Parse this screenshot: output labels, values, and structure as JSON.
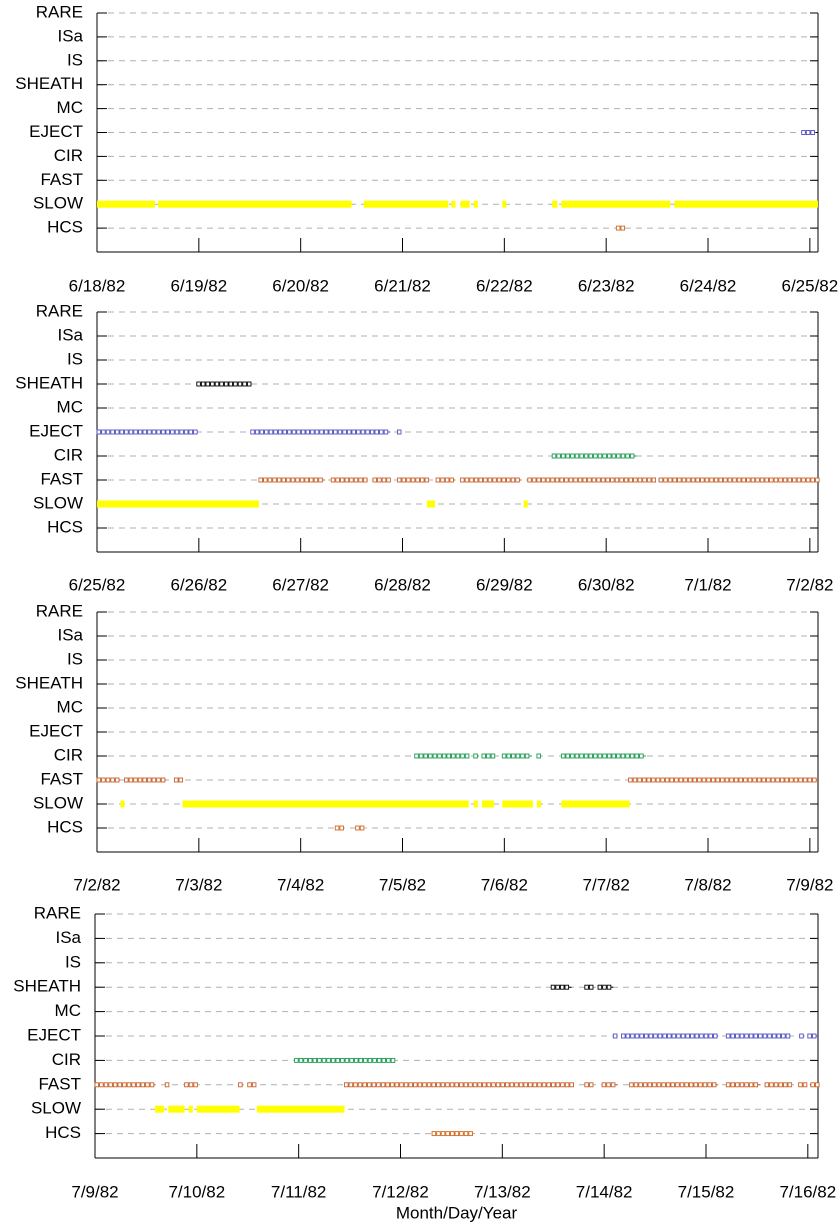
{
  "chart_data": [
    {
      "type": "timeline",
      "categories": [
        "HCS",
        "SLOW",
        "FAST",
        "CIR",
        "EJECT",
        "MC",
        "SHEATH",
        "IS",
        "ISa",
        "RARE"
      ],
      "category_colors": [
        "#d2691e",
        "#ffff00",
        "#c8602a",
        "#1a9a50",
        "#5050c0",
        null,
        "#000000",
        null,
        null,
        null
      ],
      "ylim": [
        -1,
        9
      ],
      "xlim": [
        0,
        7.08
      ],
      "grid": true,
      "xticks": [
        {
          "value": 0,
          "label": "6/18/82"
        },
        {
          "value": 1,
          "label": "6/19/82"
        },
        {
          "value": 2,
          "label": "6/20/82"
        },
        {
          "value": 3,
          "label": "6/21/82"
        },
        {
          "value": 4,
          "label": "6/22/82"
        },
        {
          "value": 5,
          "label": "6/23/82"
        },
        {
          "value": 6,
          "label": "6/24/82"
        },
        {
          "value": 7,
          "label": "6/25/82"
        }
      ],
      "intervals": [
        {
          "y": 1,
          "x": [
            0,
            0.57
          ]
        },
        {
          "y": 1,
          "x": [
            0.6,
            2.5
          ]
        },
        {
          "y": 1,
          "x": [
            2.62,
            3.45
          ]
        },
        {
          "y": 1,
          "x": [
            3.48,
            3.52
          ]
        },
        {
          "y": 1,
          "x": [
            3.57,
            3.66
          ]
        },
        {
          "y": 1,
          "x": [
            3.7,
            3.74
          ]
        },
        {
          "y": 1,
          "x": [
            3.98,
            4.02
          ]
        },
        {
          "y": 1,
          "x": [
            4.47,
            4.52
          ]
        },
        {
          "y": 1,
          "x": [
            4.56,
            5.63
          ]
        },
        {
          "y": 1,
          "x": [
            5.67,
            7.08
          ]
        },
        {
          "y": 4,
          "x": [
            6.92,
            7.06
          ]
        },
        {
          "y": 0,
          "x": [
            5.1,
            5.18
          ]
        }
      ]
    },
    {
      "type": "timeline",
      "categories": [
        "HCS",
        "SLOW",
        "FAST",
        "CIR",
        "EJECT",
        "MC",
        "SHEATH",
        "IS",
        "ISa",
        "RARE"
      ],
      "category_colors": [
        "#d2691e",
        "#ffff00",
        "#c8602a",
        "#1a9a50",
        "#5050c0",
        null,
        "#000000",
        null,
        null,
        null
      ],
      "ylim": [
        -1,
        9
      ],
      "xlim": [
        0,
        7.08
      ],
      "grid": true,
      "xticks": [
        {
          "value": 0,
          "label": "6/25/82"
        },
        {
          "value": 1,
          "label": "6/26/82"
        },
        {
          "value": 2,
          "label": "6/27/82"
        },
        {
          "value": 3,
          "label": "6/28/82"
        },
        {
          "value": 4,
          "label": "6/29/82"
        },
        {
          "value": 5,
          "label": "6/30/82"
        },
        {
          "value": 6,
          "label": "7/1/82"
        },
        {
          "value": 7,
          "label": "7/2/82"
        }
      ],
      "intervals": [
        {
          "y": 6,
          "x": [
            0.98,
            1.51
          ]
        },
        {
          "y": 4,
          "x": [
            0,
            0.98
          ]
        },
        {
          "y": 4,
          "x": [
            1.51,
            2.88
          ]
        },
        {
          "y": 4,
          "x": [
            2.95,
            2.99
          ]
        },
        {
          "y": 3,
          "x": [
            4.47,
            5.3
          ]
        },
        {
          "y": 2,
          "x": [
            1.59,
            2.24
          ]
        },
        {
          "y": 2,
          "x": [
            2.3,
            2.66
          ]
        },
        {
          "y": 2,
          "x": [
            2.71,
            2.88
          ]
        },
        {
          "y": 2,
          "x": [
            2.95,
            3.25
          ]
        },
        {
          "y": 2,
          "x": [
            3.33,
            3.52
          ]
        },
        {
          "y": 2,
          "x": [
            3.57,
            4.17
          ]
        },
        {
          "y": 2,
          "x": [
            4.23,
            5.48
          ]
        },
        {
          "y": 2,
          "x": [
            5.52,
            7.08
          ]
        },
        {
          "y": 1,
          "x": [
            0,
            1.59
          ]
        },
        {
          "y": 1,
          "x": [
            3.24,
            3.32
          ]
        },
        {
          "y": 1,
          "x": [
            4.19,
            4.23
          ]
        }
      ]
    },
    {
      "type": "timeline",
      "categories": [
        "HCS",
        "SLOW",
        "FAST",
        "CIR",
        "EJECT",
        "MC",
        "SHEATH",
        "IS",
        "ISa",
        "RARE"
      ],
      "category_colors": [
        "#d2691e",
        "#ffff00",
        "#c8602a",
        "#1a9a50",
        "#5050c0",
        null,
        "#000000",
        null,
        null,
        null
      ],
      "ylim": [
        -1,
        9
      ],
      "xlim": [
        0,
        7.08
      ],
      "grid": true,
      "xticks": [
        {
          "value": 0,
          "label": "7/2/82"
        },
        {
          "value": 1,
          "label": "7/3/82"
        },
        {
          "value": 2,
          "label": "7/4/82"
        },
        {
          "value": 3,
          "label": "7/5/82"
        },
        {
          "value": 4,
          "label": "7/6/82"
        },
        {
          "value": 5,
          "label": "7/7/82"
        },
        {
          "value": 6,
          "label": "7/8/82"
        },
        {
          "value": 7,
          "label": "7/9/82"
        }
      ],
      "intervals": [
        {
          "y": 3,
          "x": [
            3.12,
            3.65
          ]
        },
        {
          "y": 3,
          "x": [
            3.7,
            3.75
          ]
        },
        {
          "y": 3,
          "x": [
            3.78,
            3.9
          ]
        },
        {
          "y": 3,
          "x": [
            3.98,
            4.27
          ]
        },
        {
          "y": 3,
          "x": [
            4.32,
            4.36
          ]
        },
        {
          "y": 3,
          "x": [
            4.56,
            5.39
          ]
        },
        {
          "y": 2,
          "x": [
            0,
            0.23
          ]
        },
        {
          "y": 2,
          "x": [
            0.27,
            0.68
          ]
        },
        {
          "y": 2,
          "x": [
            0.76,
            0.84
          ]
        },
        {
          "y": 2,
          "x": [
            5.22,
            7.08
          ]
        },
        {
          "y": 1,
          "x": [
            0.23,
            0.27
          ]
        },
        {
          "y": 1,
          "x": [
            0.84,
            3.65
          ]
        },
        {
          "y": 1,
          "x": [
            3.7,
            3.74
          ]
        },
        {
          "y": 1,
          "x": [
            3.78,
            3.9
          ]
        },
        {
          "y": 1,
          "x": [
            3.98,
            4.28
          ]
        },
        {
          "y": 1,
          "x": [
            4.32,
            4.36
          ]
        },
        {
          "y": 1,
          "x": [
            4.56,
            5.23
          ]
        },
        {
          "y": 0,
          "x": [
            2.34,
            2.41
          ]
        },
        {
          "y": 0,
          "x": [
            2.54,
            2.62
          ]
        }
      ]
    },
    {
      "type": "timeline",
      "categories": [
        "HCS",
        "SLOW",
        "FAST",
        "CIR",
        "EJECT",
        "MC",
        "SHEATH",
        "IS",
        "ISa",
        "RARE"
      ],
      "category_colors": [
        "#d2691e",
        "#ffff00",
        "#c8602a",
        "#1a9a50",
        "#5050c0",
        null,
        "#000000",
        null,
        null,
        null
      ],
      "ylim": [
        -1,
        9
      ],
      "xlim": [
        0,
        7.1
      ],
      "grid": true,
      "x_label": "Month/Day/Year",
      "xticks": [
        {
          "value": 0,
          "label": "7/9/82"
        },
        {
          "value": 1,
          "label": "7/10/82"
        },
        {
          "value": 2,
          "label": "7/11/82"
        },
        {
          "value": 3,
          "label": "7/12/82"
        },
        {
          "value": 4,
          "label": "7/13/82"
        },
        {
          "value": 5,
          "label": "7/14/82"
        },
        {
          "value": 6,
          "label": "7/15/82"
        },
        {
          "value": 7,
          "label": "7/16/82"
        }
      ],
      "intervals": [
        {
          "y": 6,
          "x": [
            4.48,
            4.68
          ]
        },
        {
          "y": 6,
          "x": [
            4.81,
            4.89
          ]
        },
        {
          "y": 6,
          "x": [
            4.94,
            5.09
          ]
        },
        {
          "y": 4,
          "x": [
            5.09,
            5.13
          ]
        },
        {
          "y": 4,
          "x": [
            5.17,
            6.12
          ]
        },
        {
          "y": 4,
          "x": [
            6.2,
            6.83
          ]
        },
        {
          "y": 4,
          "x": [
            6.92,
            6.95
          ]
        },
        {
          "y": 4,
          "x": [
            7,
            7.1
          ]
        },
        {
          "y": 3,
          "x": [
            1.96,
            2.95
          ]
        },
        {
          "y": 2,
          "x": [
            0,
            0.59
          ]
        },
        {
          "y": 2,
          "x": [
            0.69,
            0.72
          ]
        },
        {
          "y": 2,
          "x": [
            0.88,
            1
          ]
        },
        {
          "y": 2,
          "x": [
            1.41,
            1.45
          ]
        },
        {
          "y": 2,
          "x": [
            1.5,
            1.58
          ]
        },
        {
          "y": 2,
          "x": [
            2.45,
            4.69
          ]
        },
        {
          "y": 2,
          "x": [
            4.81,
            4.89
          ]
        },
        {
          "y": 2,
          "x": [
            4.98,
            5.13
          ]
        },
        {
          "y": 2,
          "x": [
            5.25,
            6.12
          ]
        },
        {
          "y": 2,
          "x": [
            6.2,
            6.53
          ]
        },
        {
          "y": 2,
          "x": [
            6.58,
            6.83
          ]
        },
        {
          "y": 2,
          "x": [
            6.91,
            6.98
          ]
        },
        {
          "y": 2,
          "x": [
            7.03,
            7.1
          ]
        },
        {
          "y": 1,
          "x": [
            0.59,
            0.68
          ]
        },
        {
          "y": 1,
          "x": [
            0.72,
            0.88
          ]
        },
        {
          "y": 1,
          "x": [
            0.92,
            0.96
          ]
        },
        {
          "y": 1,
          "x": [
            1,
            1.42
          ]
        },
        {
          "y": 1,
          "x": [
            1.59,
            2.45
          ]
        },
        {
          "y": 0,
          "x": [
            3.31,
            3.7
          ]
        }
      ]
    }
  ]
}
